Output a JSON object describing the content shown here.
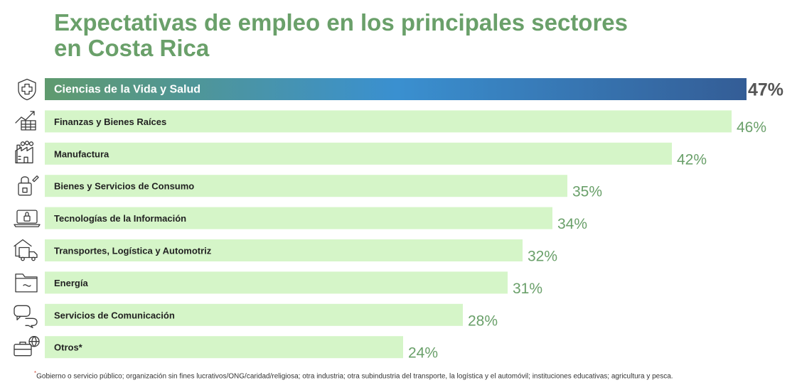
{
  "chart_data": {
    "type": "bar",
    "orientation": "horizontal",
    "title_line1": "Expectativas de empleo en los principales sectores",
    "title_line2": "en Costa Rica",
    "categories": [
      "Ciencias de la Vida y Salud",
      "Finanzas y Bienes Raíces",
      "Manufactura",
      "Bienes y Servicios de Consumo",
      "Tecnologías de la Información",
      "Transportes, Logística y Automotriz",
      "Energía",
      "Servicios de Comunicación",
      "Otros*"
    ],
    "values": [
      47,
      46,
      42,
      35,
      34,
      32,
      31,
      28,
      24
    ],
    "value_labels": [
      "47%",
      "46%",
      "42%",
      "35%",
      "34%",
      "32%",
      "31%",
      "28%",
      "24%"
    ],
    "icons": [
      "shield-cross-icon",
      "finance-chart-icon",
      "factory-icon",
      "shopping-bag-icon",
      "laptop-lock-icon",
      "truck-warehouse-icon",
      "energy-folder-icon",
      "chat-bubbles-icon",
      "briefcase-globe-icon"
    ],
    "highlight_index": 0,
    "xlim": [
      0,
      47
    ],
    "footnote_mark": "*",
    "footnote": "Gobierno o servicio público; organización sin fines lucrativos/ONG/caridad/religiosa; otra industria; otra subindustria del transporte, la logística y el automóvil; instituciones educativas; agricultura y pesca."
  },
  "colors": {
    "title": "#6aa06a",
    "bar": "#d5f5c8",
    "highlight_start": "#5f9a6e",
    "highlight_mid": "#3a90d0",
    "highlight_end": "#345d96",
    "value_text": "#6aa06a",
    "highlight_value_text": "#555555"
  }
}
